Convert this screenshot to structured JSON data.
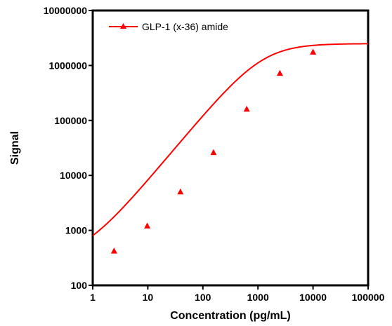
{
  "chart_data": {
    "type": "line",
    "xscale": "log",
    "yscale": "log",
    "xlim": [
      1,
      100000
    ],
    "ylim": [
      100,
      10000000
    ],
    "xlabel": "Concentration (pg/mL)",
    "ylabel": "Signal",
    "x_tick_labels": [
      "1",
      "10",
      "100",
      "1000",
      "10000",
      "100000"
    ],
    "y_tick_labels": [
      "100",
      "1000",
      "10000",
      "100000",
      "1000000",
      "10000000"
    ],
    "legend_position": "top-left",
    "grid": false,
    "series": [
      {
        "name": "GLP-1 (x-36) amide",
        "color": "#ff0000",
        "marker": "triangle",
        "points": [
          {
            "x": 2.44,
            "y": 420
          },
          {
            "x": 9.77,
            "y": 1200
          },
          {
            "x": 39.1,
            "y": 5000
          },
          {
            "x": 156,
            "y": 26000
          },
          {
            "x": 625,
            "y": 160000
          },
          {
            "x": 2500,
            "y": 720000
          },
          {
            "x": 10000,
            "y": 1750000
          }
        ],
        "fit": {
          "model": "4PL",
          "bottom": 300,
          "top": 2500000,
          "ec50": 1200,
          "hill": 1.2
        }
      }
    ]
  }
}
